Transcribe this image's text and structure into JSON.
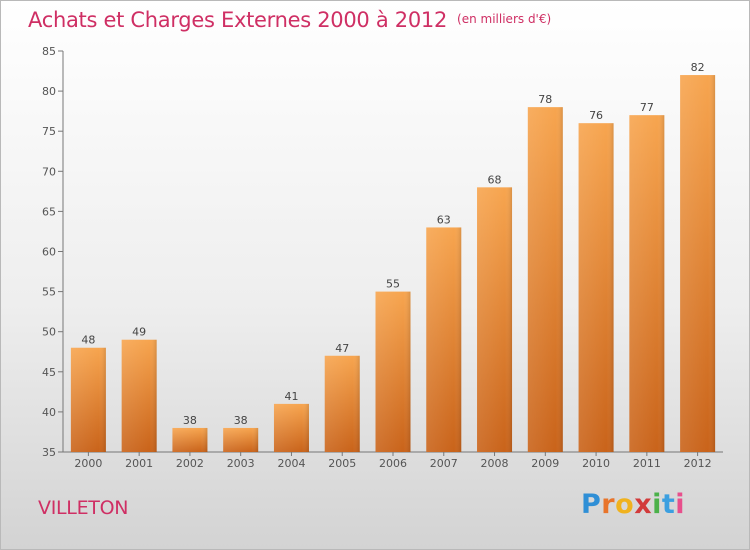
{
  "title": "Achats et Charges Externes 2000 à 2012",
  "subtitle": "(en milliers d'€)",
  "location": "VILLETON",
  "logo": "Proxiti",
  "colors": {
    "bar_top": "#f7a54f",
    "bar_bottom": "#c9631a",
    "accent": "#cf2f64"
  },
  "chart_data": {
    "type": "bar",
    "categories": [
      "2000",
      "2001",
      "2002",
      "2003",
      "2004",
      "2005",
      "2006",
      "2007",
      "2008",
      "2009",
      "2010",
      "2011",
      "2012"
    ],
    "values": [
      48,
      49,
      38,
      38,
      41,
      47,
      55,
      63,
      68,
      78,
      76,
      77,
      82
    ],
    "ylim": [
      35,
      85
    ],
    "yticks": [
      35,
      40,
      45,
      50,
      55,
      60,
      65,
      70,
      75,
      80,
      85
    ],
    "grid": false,
    "legend": "none"
  }
}
